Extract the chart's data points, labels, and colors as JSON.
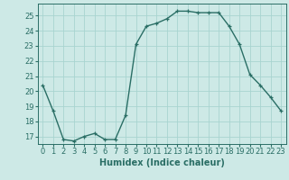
{
  "x": [
    0,
    1,
    2,
    3,
    4,
    5,
    6,
    7,
    8,
    9,
    10,
    11,
    12,
    13,
    14,
    15,
    16,
    17,
    18,
    19,
    20,
    21,
    22,
    23
  ],
  "y": [
    20.4,
    18.7,
    16.8,
    16.7,
    17.0,
    17.2,
    16.8,
    16.8,
    18.4,
    23.1,
    24.3,
    24.5,
    24.8,
    25.3,
    25.3,
    25.2,
    25.2,
    25.2,
    24.3,
    23.1,
    21.1,
    20.4,
    19.6,
    18.7
  ],
  "line_color": "#2a6e65",
  "marker": "+",
  "markersize": 3,
  "linewidth": 1.0,
  "bg_color": "#cde9e6",
  "grid_color": "#a8d4d0",
  "xlabel": "Humidex (Indice chaleur)",
  "tick_fontsize": 6,
  "xlabel_fontsize": 7,
  "xlim": [
    -0.5,
    23.5
  ],
  "ylim": [
    16.5,
    25.8
  ],
  "yticks": [
    17,
    18,
    19,
    20,
    21,
    22,
    23,
    24,
    25
  ],
  "xticks": [
    0,
    1,
    2,
    3,
    4,
    5,
    6,
    7,
    8,
    9,
    10,
    11,
    12,
    13,
    14,
    15,
    16,
    17,
    18,
    19,
    20,
    21,
    22,
    23
  ]
}
